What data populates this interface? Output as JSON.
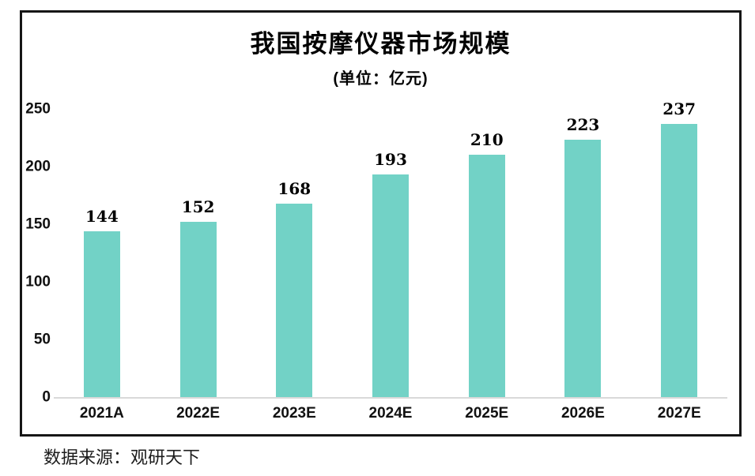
{
  "chart_data": {
    "type": "bar",
    "title": "我国按摩仪器市场规模",
    "subtitle": "(单位：亿元)",
    "categories": [
      "2021A",
      "2022E",
      "2023E",
      "2024E",
      "2025E",
      "2026E",
      "2027E"
    ],
    "values": [
      144,
      152,
      168,
      193,
      210,
      223,
      237
    ],
    "xlabel": "",
    "ylabel": "",
    "ylim": [
      0,
      250
    ],
    "yticks": [
      0,
      50,
      100,
      150,
      200,
      250
    ],
    "grid": false,
    "legend": "none",
    "data_labels": true,
    "bar_color": "#72d2c6",
    "axis_line_color": "#d9d9d9",
    "frame_color": "#161616",
    "text_color": "#000000"
  },
  "source": "数据来源：观研天下"
}
